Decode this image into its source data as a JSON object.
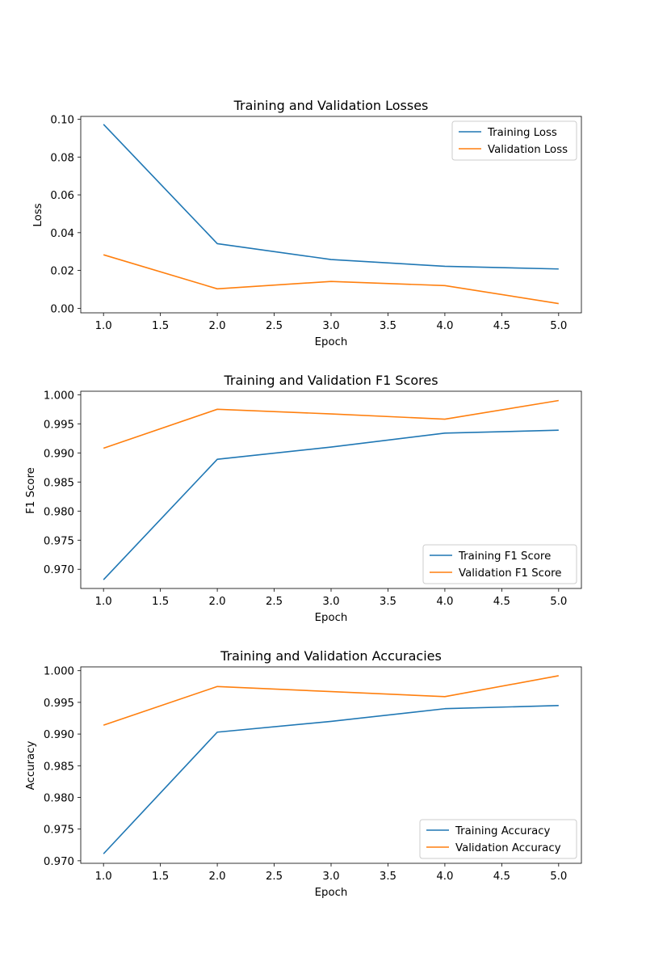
{
  "chart_data": [
    {
      "type": "line",
      "title": "Training and Validation Losses",
      "xlabel": "Epoch",
      "ylabel": "Loss",
      "xlim": [
        0.8,
        5.2
      ],
      "ylim": [
        -0.0024,
        0.1015
      ],
      "xticks": [
        1.0,
        1.5,
        2.0,
        2.5,
        3.0,
        3.5,
        4.0,
        4.5,
        5.0
      ],
      "yticks": [
        0.0,
        0.02,
        0.04,
        0.06,
        0.08,
        0.1
      ],
      "ytick_format": 2,
      "legend_position": "upper right",
      "x": [
        1,
        2,
        3,
        4,
        5
      ],
      "series": [
        {
          "name": "Training Loss",
          "color": "#1f77b4",
          "values": [
            0.0973,
            0.0342,
            0.0258,
            0.0222,
            0.0208
          ]
        },
        {
          "name": "Validation Loss",
          "color": "#ff7f0e",
          "values": [
            0.0283,
            0.0103,
            0.0142,
            0.012,
            0.0025
          ]
        }
      ]
    },
    {
      "type": "line",
      "title": "Training and Validation F1 Scores",
      "xlabel": "Epoch",
      "ylabel": "F1 Score",
      "xlim": [
        0.8,
        5.2
      ],
      "ylim": [
        0.9667,
        1.0006
      ],
      "xticks": [
        1.0,
        1.5,
        2.0,
        2.5,
        3.0,
        3.5,
        4.0,
        4.5,
        5.0
      ],
      "yticks": [
        0.97,
        0.975,
        0.98,
        0.985,
        0.99,
        0.995,
        1.0
      ],
      "ytick_format": 3,
      "legend_position": "lower right",
      "x": [
        1,
        2,
        3,
        4,
        5
      ],
      "series": [
        {
          "name": "Training F1 Score",
          "color": "#1f77b4",
          "values": [
            0.9682,
            0.9889,
            0.991,
            0.9934,
            0.9939
          ]
        },
        {
          "name": "Validation F1 Score",
          "color": "#ff7f0e",
          "values": [
            0.9908,
            0.9975,
            0.9967,
            0.9958,
            0.999
          ]
        }
      ]
    },
    {
      "type": "line",
      "title": "Training and Validation Accuracies",
      "xlabel": "Epoch",
      "ylabel": "Accuracy",
      "xlim": [
        0.8,
        5.2
      ],
      "ylim": [
        0.9696,
        1.0006
      ],
      "xticks": [
        1.0,
        1.5,
        2.0,
        2.5,
        3.0,
        3.5,
        4.0,
        4.5,
        5.0
      ],
      "yticks": [
        0.97,
        0.975,
        0.98,
        0.985,
        0.99,
        0.995,
        1.0
      ],
      "ytick_format": 3,
      "legend_position": "lower right",
      "x": [
        1,
        2,
        3,
        4,
        5
      ],
      "series": [
        {
          "name": "Training Accuracy",
          "color": "#1f77b4",
          "values": [
            0.9711,
            0.9903,
            0.992,
            0.994,
            0.9945
          ]
        },
        {
          "name": "Validation Accuracy",
          "color": "#ff7f0e",
          "values": [
            0.9914,
            0.9975,
            0.9967,
            0.9959,
            0.9992
          ]
        }
      ]
    }
  ]
}
